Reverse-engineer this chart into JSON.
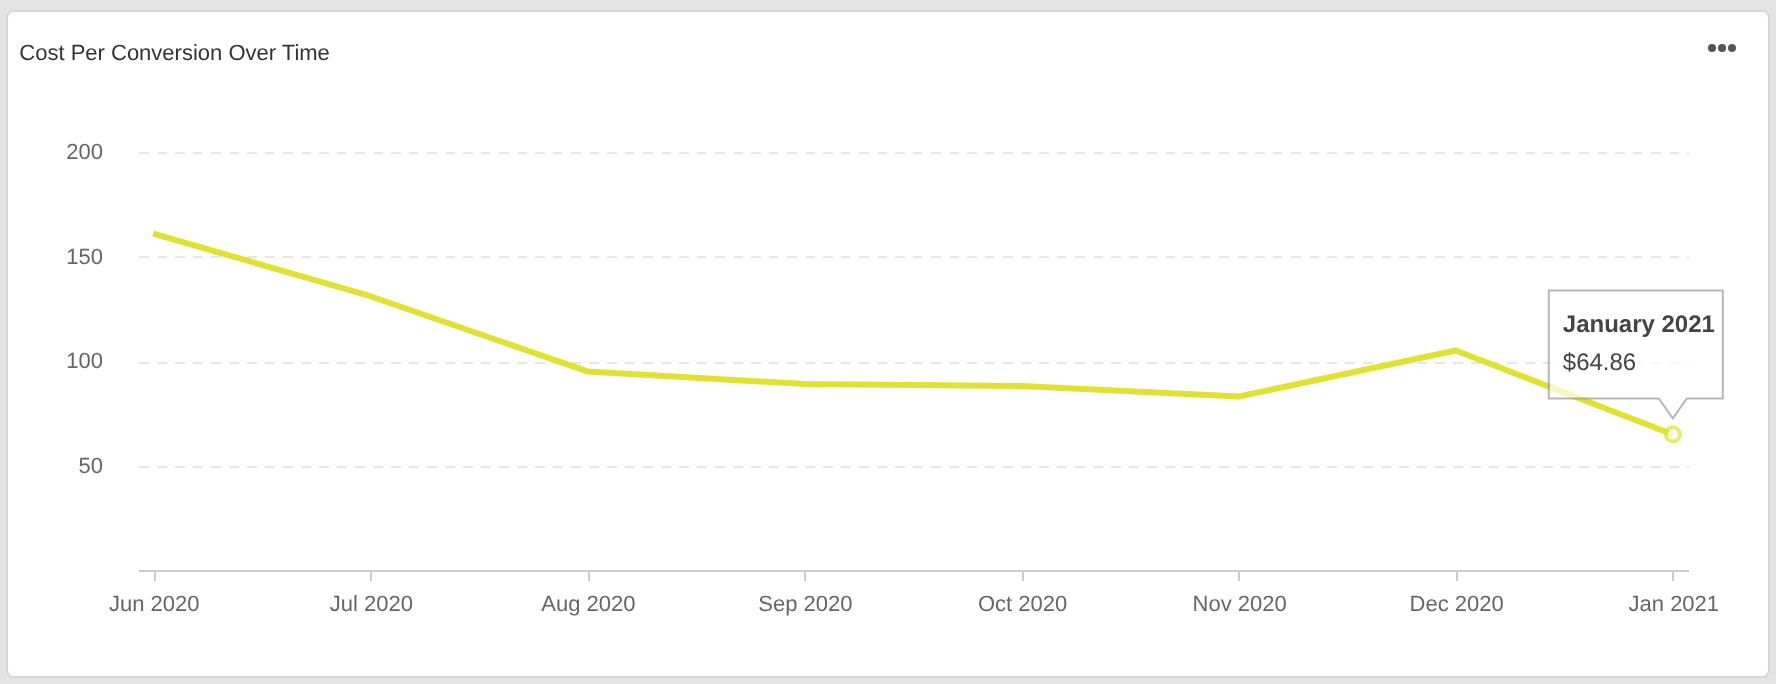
{
  "chart_data": {
    "type": "line",
    "title": "Cost Per Conversion Over Time",
    "categories": [
      "Jun 2020",
      "Jul 2020",
      "Aug 2020",
      "Sep 2020",
      "Oct 2020",
      "Nov 2020",
      "Dec 2020",
      "Jan 2021"
    ],
    "series": [
      {
        "color": "#dfe232",
        "values": [
          161,
          131,
          95,
          89,
          88,
          83,
          105,
          64.86
        ]
      }
    ],
    "ylim": [
      0,
      200
    ],
    "yticks": [
      50,
      100,
      150,
      200
    ],
    "grid": "y",
    "marker": "none",
    "line_style": "solid",
    "annotations": [
      "January 2021",
      {
        "text": "$64.86",
        "x": "Jan 2021",
        "y": 64.86
      }
    ]
  }
}
